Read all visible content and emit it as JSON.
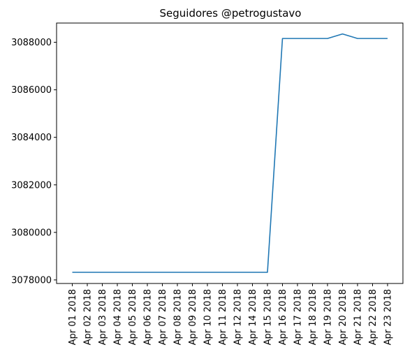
{
  "chart_data": {
    "type": "line",
    "title": "Seguidores @petrogustavo",
    "xlabel": "",
    "ylabel": "",
    "x": [
      "Apr 01 2018",
      "Apr 02 2018",
      "Apr 03 2018",
      "Apr 04 2018",
      "Apr 05 2018",
      "Apr 06 2018",
      "Apr 07 2018",
      "Apr 08 2018",
      "Apr 09 2018",
      "Apr 10 2018",
      "Apr 11 2018",
      "Apr 12 2018",
      "Apr 14 2018",
      "Apr 15 2018",
      "Apr 16 2018",
      "Apr 17 2018",
      "Apr 18 2018",
      "Apr 19 2018",
      "Apr 20 2018",
      "Apr 21 2018",
      "Apr 22 2018",
      "Apr 23 2018"
    ],
    "series": [
      {
        "values": [
          3078320,
          3078320,
          3078320,
          3078320,
          3078320,
          3078320,
          3078320,
          3078320,
          3078320,
          3078320,
          3078320,
          3078320,
          3078320,
          3078320,
          3088160,
          3088160,
          3088160,
          3088160,
          3088350,
          3088160,
          3088160,
          3088160
        ]
      }
    ],
    "ylim": [
      3077850,
      3088810
    ],
    "yticks": [
      3078000,
      3080000,
      3082000,
      3084000,
      3086000,
      3088000
    ],
    "line_color": "#1f77b4",
    "grid": false,
    "legend": "none"
  }
}
